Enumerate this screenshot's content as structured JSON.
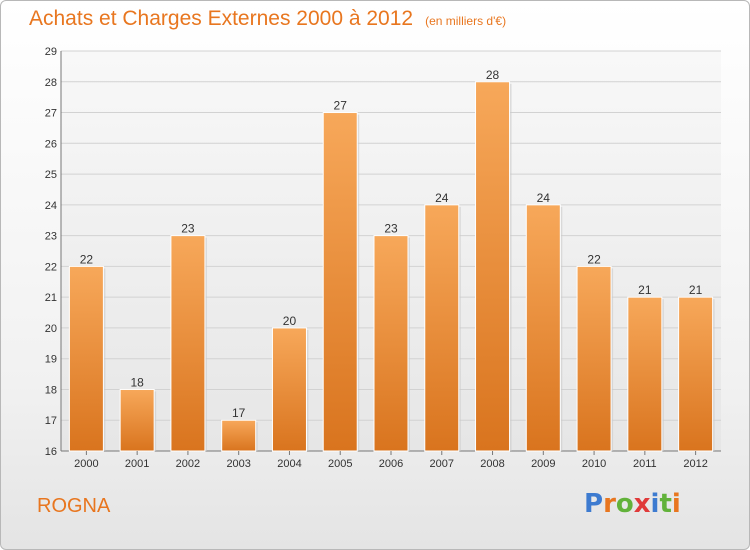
{
  "header": {
    "title": "Achats et Charges Externes 2000 à 2012",
    "unit": "(en milliers d'€)"
  },
  "footer": {
    "commune": "ROGNA",
    "logo": "Proxiti"
  },
  "colors": {
    "accent": "#e8761f",
    "bar_light": "#f7a85a",
    "bar_dark": "#d9741e",
    "logo_letters": [
      "#3d7bd0",
      "#e8761f",
      "#62b23a",
      "#e03a3a",
      "#3d7bd0",
      "#62b23a",
      "#e8761f"
    ]
  },
  "chart_data": {
    "type": "bar",
    "title": "Achats et Charges Externes 2000 à 2012",
    "subtitle": "(en milliers d'€)",
    "categories": [
      "2000",
      "2001",
      "2002",
      "2003",
      "2004",
      "2005",
      "2006",
      "2007",
      "2008",
      "2009",
      "2010",
      "2011",
      "2012"
    ],
    "values": [
      22,
      18,
      23,
      17,
      20,
      27,
      23,
      24,
      28,
      24,
      22,
      21,
      21
    ],
    "ylim": [
      16,
      29
    ],
    "yticks": [
      16,
      17,
      18,
      19,
      20,
      21,
      22,
      23,
      24,
      25,
      26,
      27,
      28,
      29
    ],
    "grid": true,
    "xlabel": "",
    "ylabel": ""
  }
}
